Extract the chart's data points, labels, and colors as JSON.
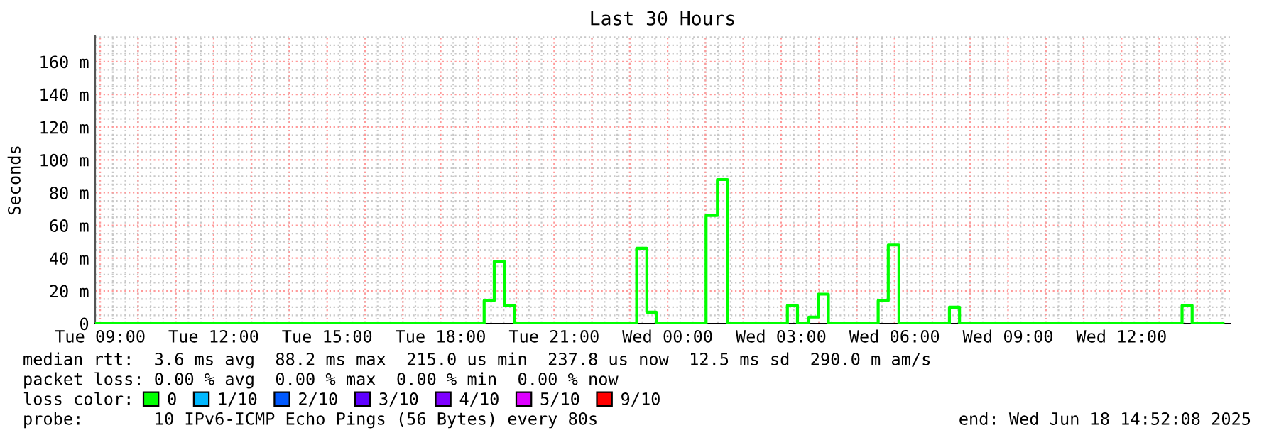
{
  "chart_data": {
    "type": "step",
    "title": "Last 30 Hours",
    "ylabel": "Seconds",
    "x": [
      "2025-06-17T08:52",
      "2025-06-17T19:09",
      "2025-06-17T19:25",
      "2025-06-17T19:41",
      "2025-06-17T19:57",
      "2025-06-17T23:11",
      "2025-06-17T23:27",
      "2025-06-17T23:42",
      "2025-06-18T01:01",
      "2025-06-18T01:19",
      "2025-06-18T01:35",
      "2025-06-18T03:10",
      "2025-06-18T03:26",
      "2025-06-18T03:44",
      "2025-06-18T03:59",
      "2025-06-18T04:15",
      "2025-06-18T05:34",
      "2025-06-18T05:50",
      "2025-06-18T06:07",
      "2025-06-18T07:27",
      "2025-06-18T07:43",
      "2025-06-18T13:36",
      "2025-06-18T13:52",
      "2025-06-18T14:41"
    ],
    "series": [
      {
        "name": "0",
        "color": "#00ff00",
        "values": [
          0,
          14,
          38,
          11,
          0,
          46,
          7,
          0,
          66,
          88,
          0,
          11,
          0,
          4,
          18,
          0,
          14,
          48,
          0,
          10,
          0,
          11,
          0,
          0
        ]
      },
      {
        "name": "1/10",
        "color": "#00b8ff",
        "values": [
          null,
          null,
          null,
          null,
          null,
          null,
          null,
          null,
          null,
          null,
          null,
          null,
          null,
          null,
          null,
          null,
          null,
          null,
          null,
          null,
          null,
          null,
          null,
          null
        ]
      },
      {
        "name": "2/10",
        "color": "#0059ff",
        "values": [
          null,
          null,
          null,
          null,
          null,
          null,
          null,
          null,
          null,
          null,
          null,
          null,
          null,
          null,
          null,
          null,
          null,
          null,
          null,
          null,
          null,
          null,
          null,
          null
        ]
      },
      {
        "name": "3/10",
        "color": "#5e00ff",
        "values": [
          null,
          null,
          null,
          null,
          null,
          null,
          null,
          null,
          null,
          null,
          null,
          null,
          null,
          null,
          null,
          null,
          null,
          null,
          null,
          null,
          null,
          null,
          null,
          null
        ]
      },
      {
        "name": "4/10",
        "color": "#7e00ff",
        "values": [
          null,
          null,
          null,
          null,
          null,
          null,
          null,
          null,
          null,
          null,
          null,
          null,
          null,
          null,
          null,
          null,
          null,
          null,
          null,
          null,
          null,
          null,
          null,
          null
        ]
      },
      {
        "name": "5/10",
        "color": "#dd00ff",
        "values": [
          null,
          null,
          null,
          null,
          null,
          null,
          null,
          null,
          null,
          null,
          null,
          null,
          null,
          null,
          null,
          null,
          null,
          null,
          null,
          null,
          null,
          null,
          null,
          null
        ]
      },
      {
        "name": "9/10",
        "color": "#ff0000",
        "values": [
          null,
          null,
          null,
          null,
          null,
          null,
          null,
          null,
          null,
          null,
          null,
          null,
          null,
          null,
          null,
          null,
          null,
          null,
          null,
          null,
          null,
          null,
          null,
          null
        ]
      }
    ],
    "xlim": [
      "2025-06-17T08:52",
      "2025-06-18T14:52"
    ],
    "xticks": [
      {
        "value": "2025-06-17T09:00",
        "label": "Tue 09:00"
      },
      {
        "value": "2025-06-17T12:00",
        "label": "Tue 12:00"
      },
      {
        "value": "2025-06-17T15:00",
        "label": "Tue 15:00"
      },
      {
        "value": "2025-06-17T18:00",
        "label": "Tue 18:00"
      },
      {
        "value": "2025-06-17T21:00",
        "label": "Tue 21:00"
      },
      {
        "value": "2025-06-18T00:00",
        "label": "Wed 00:00"
      },
      {
        "value": "2025-06-18T03:00",
        "label": "Wed 03:00"
      },
      {
        "value": "2025-06-18T06:00",
        "label": "Wed 06:00"
      },
      {
        "value": "2025-06-18T09:00",
        "label": "Wed 09:00"
      },
      {
        "value": "2025-06-18T12:00",
        "label": "Wed 12:00"
      }
    ],
    "ylim": [
      0,
      176
    ],
    "yticks": [
      0,
      {
        "value": 20,
        "label": "20 m"
      },
      {
        "value": 40,
        "label": "40 m"
      },
      {
        "value": 60,
        "label": "60 m"
      },
      {
        "value": 80,
        "label": "80 m"
      },
      {
        "value": 100,
        "label": "100 m"
      },
      {
        "value": 120,
        "label": "120 m"
      },
      {
        "value": 140,
        "label": "140 m"
      },
      {
        "value": 160,
        "label": "160 m"
      }
    ],
    "grid": true,
    "legend": "bottom",
    "line_style": "solid",
    "marker": "none",
    "annotations": [
      "median rtt:  3.6 ms avg  88.2 ms max  215.0 us min  237.8 us now  12.5 ms sd  290.0 m am/s",
      "packet loss: 0.00 % avg  0.00 % max  0.00 % min  0.00 % now",
      "loss color:",
      "probe:       10 IPv6-ICMP Echo Pings (56 Bytes) every 80s",
      "end: Wed Jun 18 14:52:08 2025"
    ]
  }
}
